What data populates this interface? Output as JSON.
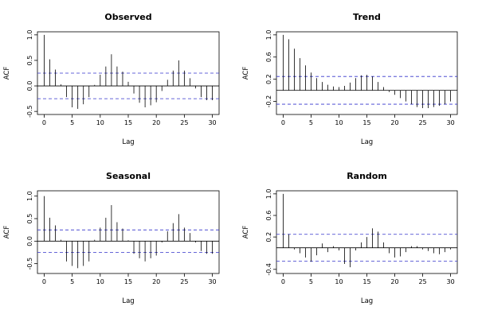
{
  "chart_data": [
    {
      "type": "bar",
      "title": "Observed",
      "xlabel": "Lag",
      "ylabel": "ACF",
      "xlim": [
        0,
        30
      ],
      "ylim": [
        -0.5,
        1.0
      ],
      "x_ticks": [
        0,
        5,
        10,
        15,
        20,
        25,
        30
      ],
      "y_ticks": [
        -0.5,
        0.0,
        0.5,
        1.0
      ],
      "y_tick_labels": [
        "-0.5",
        "0.0",
        "0.5",
        "1.0"
      ],
      "conf_limit": 0.25,
      "lags": [
        0,
        1,
        2,
        3,
        4,
        5,
        6,
        7,
        8,
        9,
        10,
        11,
        12,
        13,
        14,
        15,
        16,
        17,
        18,
        19,
        20,
        21,
        22,
        23,
        24,
        25,
        26,
        27,
        28,
        29,
        30
      ],
      "values": [
        1.0,
        0.52,
        0.32,
        0.03,
        -0.22,
        -0.42,
        -0.45,
        -0.36,
        -0.22,
        0.02,
        0.22,
        0.38,
        0.62,
        0.38,
        0.28,
        0.08,
        -0.15,
        -0.33,
        -0.42,
        -0.38,
        -0.32,
        -0.1,
        0.12,
        0.3,
        0.5,
        0.3,
        0.15,
        -0.05,
        -0.22,
        -0.28,
        -0.28
      ]
    },
    {
      "type": "bar",
      "title": "Trend",
      "xlabel": "Lag",
      "ylabel": "ACF",
      "xlim": [
        0,
        30
      ],
      "ylim": [
        -0.38,
        1.0
      ],
      "x_ticks": [
        0,
        5,
        10,
        15,
        20,
        25,
        30
      ],
      "y_ticks": [
        -0.2,
        0.2,
        0.6,
        1.0
      ],
      "y_tick_labels": [
        "-0.2",
        "0.2",
        "0.6",
        "1.0"
      ],
      "conf_limit": 0.25,
      "lags": [
        0,
        1,
        2,
        3,
        4,
        5,
        6,
        7,
        8,
        9,
        10,
        11,
        12,
        13,
        14,
        15,
        16,
        17,
        18,
        19,
        20,
        21,
        22,
        23,
        24,
        25,
        26,
        27,
        28,
        29,
        30
      ],
      "values": [
        1.0,
        0.92,
        0.75,
        0.58,
        0.45,
        0.32,
        0.22,
        0.15,
        0.1,
        0.07,
        0.06,
        0.08,
        0.14,
        0.22,
        0.27,
        0.28,
        0.25,
        0.15,
        0.06,
        -0.03,
        -0.08,
        -0.14,
        -0.2,
        -0.25,
        -0.3,
        -0.32,
        -0.32,
        -0.3,
        -0.28,
        -0.25,
        -0.2
      ]
    },
    {
      "type": "bar",
      "title": "Seasonal",
      "xlabel": "Lag",
      "ylabel": "ACF",
      "xlim": [
        0,
        30
      ],
      "ylim": [
        -0.65,
        1.05
      ],
      "x_ticks": [
        0,
        5,
        10,
        15,
        20,
        25,
        30
      ],
      "y_ticks": [
        -0.5,
        0.0,
        0.5,
        1.0
      ],
      "y_tick_labels": [
        "-0.5",
        "0.0",
        "0.5",
        "1.0"
      ],
      "conf_limit": 0.25,
      "lags": [
        0,
        1,
        2,
        3,
        4,
        5,
        6,
        7,
        8,
        9,
        10,
        11,
        12,
        13,
        14,
        15,
        16,
        17,
        18,
        19,
        20,
        21,
        22,
        23,
        24,
        25,
        26,
        27,
        28,
        29,
        30
      ],
      "values": [
        1.0,
        0.52,
        0.35,
        0.03,
        -0.45,
        -0.55,
        -0.6,
        -0.55,
        -0.45,
        0.03,
        0.3,
        0.52,
        0.8,
        0.42,
        0.28,
        0.02,
        -0.28,
        -0.38,
        -0.45,
        -0.38,
        -0.32,
        -0.03,
        0.22,
        0.4,
        0.6,
        0.3,
        0.18,
        -0.03,
        -0.22,
        -0.28,
        -0.28
      ]
    },
    {
      "type": "bar",
      "title": "Random",
      "xlabel": "Lag",
      "ylabel": "ACF",
      "xlim": [
        0,
        30
      ],
      "ylim": [
        -0.42,
        1.0
      ],
      "x_ticks": [
        0,
        5,
        10,
        15,
        20,
        25,
        30
      ],
      "y_ticks": [
        -0.4,
        0.2,
        0.6,
        1.0
      ],
      "y_tick_labels": [
        "-0.4",
        "0.2",
        "0.6",
        "1.0"
      ],
      "conf_limit": 0.25,
      "lags": [
        0,
        1,
        2,
        3,
        4,
        5,
        6,
        7,
        8,
        9,
        10,
        11,
        12,
        13,
        14,
        15,
        16,
        17,
        18,
        19,
        20,
        21,
        22,
        23,
        24,
        25,
        26,
        27,
        28,
        29,
        30
      ],
      "values": [
        1.0,
        0.25,
        -0.03,
        -0.1,
        -0.18,
        -0.26,
        -0.14,
        0.08,
        -0.08,
        0.03,
        -0.05,
        -0.3,
        -0.36,
        -0.05,
        0.1,
        0.2,
        0.36,
        0.3,
        0.1,
        -0.1,
        -0.18,
        -0.16,
        -0.08,
        0.03,
        0.03,
        -0.03,
        -0.06,
        -0.1,
        -0.12,
        -0.08,
        -0.03
      ]
    }
  ]
}
